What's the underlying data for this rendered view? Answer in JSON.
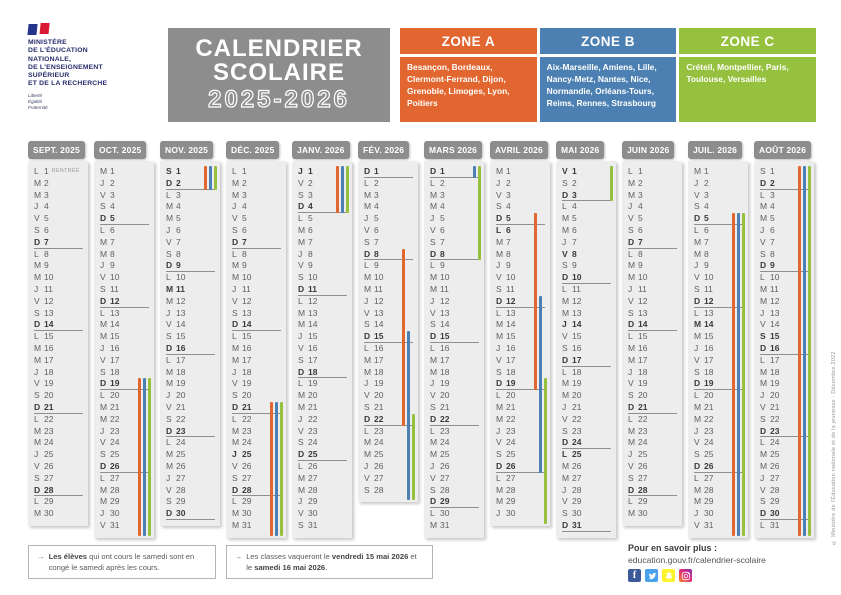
{
  "meta": {
    "ministry_lines": [
      "MINISTÈRE",
      "DE L'ÉDUCATION",
      "NATIONALE,",
      "DE L'ENSEIGNEMENT",
      "SUPÉRIEUR",
      "ET DE LA RECHERCHE"
    ],
    "motto_lines": [
      "Liberté",
      "Égalité",
      "Fraternité"
    ],
    "title_line1": "CALENDRIER",
    "title_line2": "SCOLAIRE",
    "years": "2025-2026",
    "credit": "© Ministère de l'Éducation nationale et de la jeunesse - Décembre 2022"
  },
  "zones": [
    {
      "key": "A",
      "name": "ZONE A",
      "color": "#E1662F",
      "cities": "Besançon, Bordeaux, Clermont-Ferrand, Dijon, Grenoble, Limoges, Lyon, Poitiers"
    },
    {
      "key": "B",
      "name": "ZONE B",
      "color": "#4D80B2",
      "cities": "Aix-Marseille, Amiens, Lille, Nancy-Metz, Nantes, Nice, Normandie, Orléans-Tours, Reims, Rennes, Strasbourg"
    },
    {
      "key": "C",
      "name": "ZONE C",
      "color": "#95C13E",
      "cities": "Créteil, Montpellier, Paris, Toulouse, Versailles"
    }
  ],
  "calendar": {
    "day_letters": [
      "L",
      "M",
      "M",
      "J",
      "V",
      "S",
      "D"
    ],
    "months": [
      {
        "label": "SEPT. 2025",
        "num_days": 30,
        "start": 0,
        "bold": [],
        "notes": {
          "1": "RENTRÉE"
        },
        "bars": []
      },
      {
        "label": "OCT. 2025",
        "num_days": 31,
        "start": 2,
        "bold": [],
        "notes": {},
        "bars": [
          [
            "A",
            19,
            31
          ],
          [
            "B",
            19,
            31
          ],
          [
            "C",
            19,
            31
          ]
        ]
      },
      {
        "label": "NOV. 2025",
        "num_days": 30,
        "start": 5,
        "bold": [
          1,
          11
        ],
        "notes": {},
        "bars": [
          [
            "A",
            1,
            2
          ],
          [
            "B",
            1,
            2
          ],
          [
            "C",
            1,
            2
          ]
        ]
      },
      {
        "label": "DÉC. 2025",
        "num_days": 31,
        "start": 0,
        "bold": [
          25
        ],
        "notes": {},
        "bars": [
          [
            "A",
            21,
            31
          ],
          [
            "B",
            21,
            31
          ],
          [
            "C",
            21,
            31
          ]
        ]
      },
      {
        "label": "JANV. 2026",
        "num_days": 31,
        "start": 3,
        "bold": [
          1
        ],
        "notes": {},
        "bars": [
          [
            "A",
            1,
            4
          ],
          [
            "B",
            1,
            4
          ],
          [
            "C",
            1,
            4
          ]
        ]
      },
      {
        "label": "FÉV. 2026",
        "num_days": 28,
        "start": 6,
        "bold": [],
        "notes": {},
        "bars": [
          [
            "A",
            8,
            22
          ],
          [
            "B",
            15,
            28
          ],
          [
            "C",
            22,
            28
          ]
        ]
      },
      {
        "label": "MARS 2026",
        "num_days": 31,
        "start": 6,
        "bold": [],
        "notes": {},
        "bars": [
          [
            "B",
            1,
            1
          ],
          [
            "C",
            1,
            8
          ]
        ]
      },
      {
        "label": "AVRIL 2026",
        "num_days": 30,
        "start": 2,
        "bold": [
          6
        ],
        "notes": {},
        "bars": [
          [
            "A",
            5,
            19
          ],
          [
            "B",
            12,
            26
          ],
          [
            "C",
            19,
            30
          ]
        ]
      },
      {
        "label": "MAI 2026",
        "num_days": 31,
        "start": 4,
        "bold": [
          1,
          8,
          14,
          25
        ],
        "notes": {},
        "bars": [
          [
            "C",
            1,
            3
          ]
        ]
      },
      {
        "label": "JUIN 2026",
        "num_days": 30,
        "start": 0,
        "bold": [],
        "notes": {},
        "bars": []
      },
      {
        "label": "JUIL. 2026",
        "num_days": 31,
        "start": 2,
        "bold": [
          14
        ],
        "notes": {},
        "bars": [
          [
            "A",
            5,
            31
          ],
          [
            "B",
            5,
            31
          ],
          [
            "C",
            5,
            31
          ]
        ]
      },
      {
        "label": "AOÛT 2026",
        "num_days": 31,
        "start": 5,
        "bold": [
          15
        ],
        "notes": {},
        "bars": [
          [
            "A",
            1,
            31
          ],
          [
            "B",
            1,
            31
          ],
          [
            "C",
            1,
            31
          ]
        ]
      }
    ]
  },
  "footnotes": [
    {
      "arrow": "→",
      "segments": [
        {
          "t": "Les élèves",
          "b": true
        },
        {
          "t": " qui ont cours le samedi sont en congé le samedi après les cours.",
          "b": false
        }
      ]
    },
    {
      "arrow": "→",
      "segments": [
        {
          "t": "Les classes vaqueront le ",
          "b": false
        },
        {
          "t": "vendredi 15 mai 2026",
          "b": true
        },
        {
          "t": " et le ",
          "b": false
        },
        {
          "t": "samedi 16 mai 2026",
          "b": true
        },
        {
          "t": ".",
          "b": false
        }
      ]
    }
  ],
  "more_info": {
    "label": "Pour en savoir plus :",
    "url": "education.gouv.fr/calendrier-scolaire",
    "socials": [
      "facebook",
      "twitter",
      "snapchat",
      "instagram"
    ]
  }
}
